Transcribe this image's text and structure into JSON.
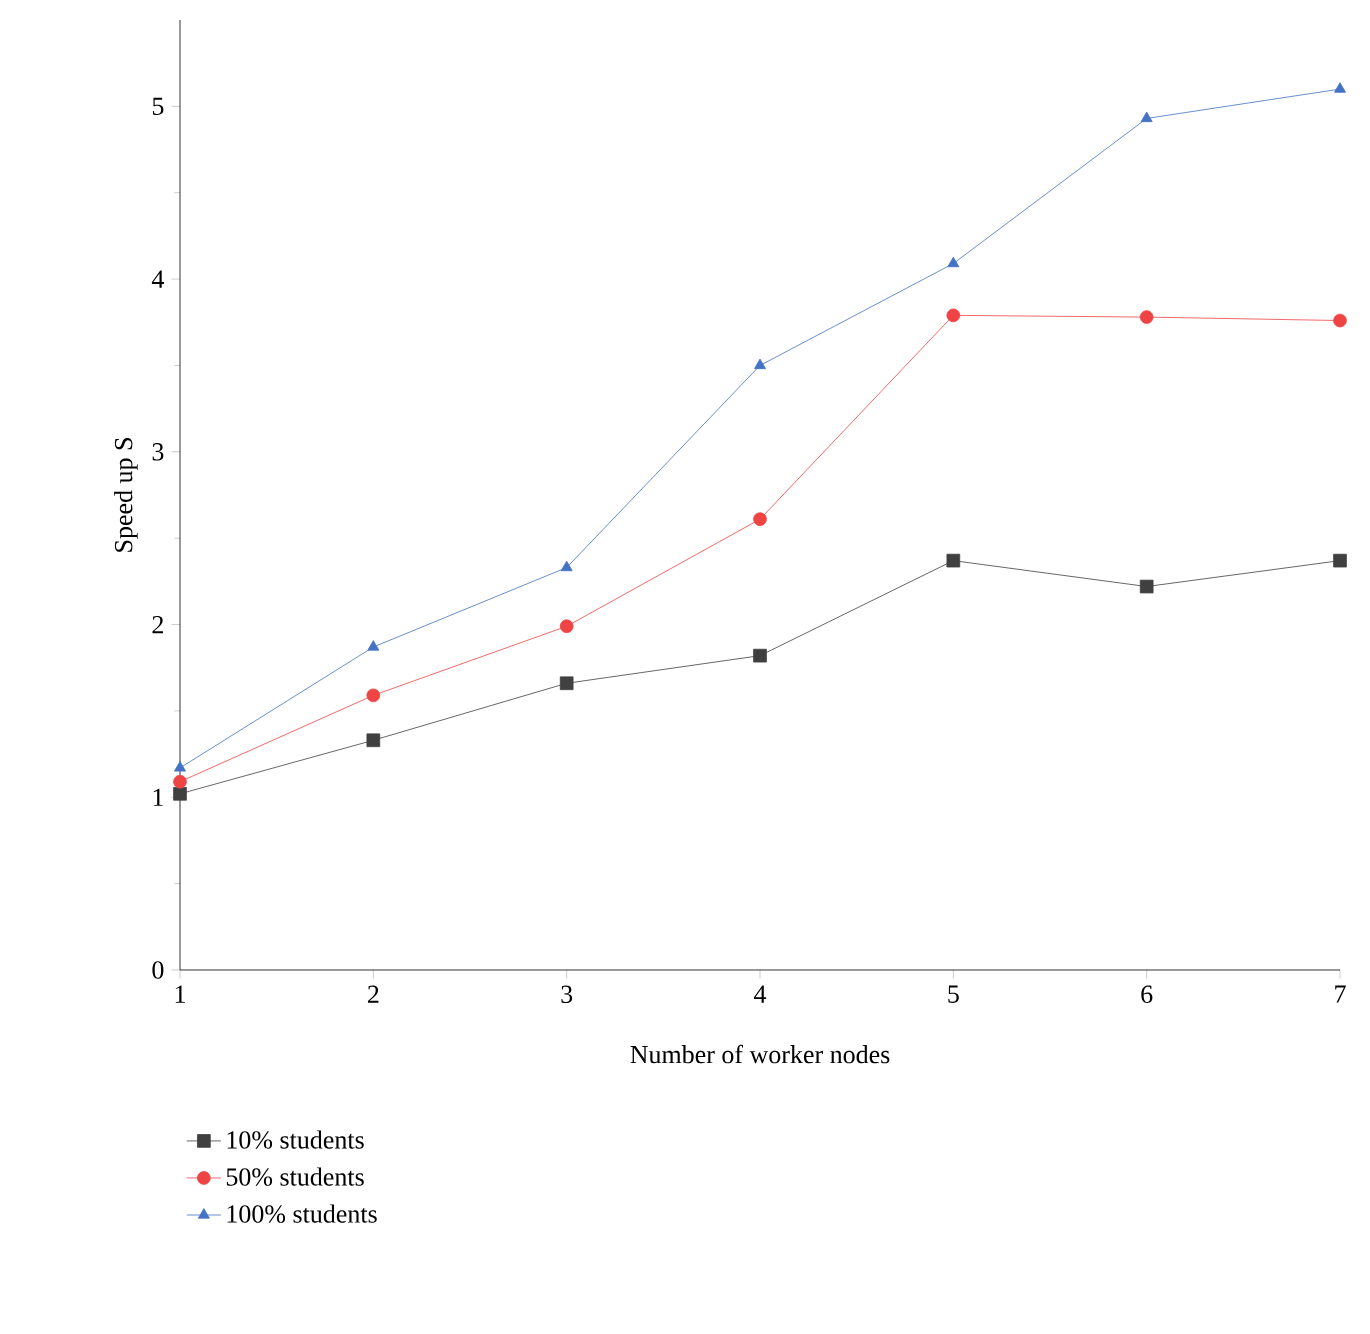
{
  "chart_data": {
    "type": "line",
    "xlabel": "Number of worker nodes",
    "ylabel": "Speed up S",
    "x": [
      1,
      2,
      3,
      4,
      5,
      6,
      7
    ],
    "series": [
      {
        "name": "10% students",
        "color": "#404040",
        "marker": "square",
        "values": [
          1.02,
          1.33,
          1.66,
          1.82,
          2.37,
          2.22,
          2.37
        ]
      },
      {
        "name": "50% students",
        "color": "#ef4444",
        "marker": "circle",
        "values": [
          1.09,
          1.59,
          1.99,
          2.61,
          3.79,
          3.78,
          3.76
        ]
      },
      {
        "name": "100% students",
        "color": "#4472c4",
        "marker": "triangle",
        "values": [
          1.17,
          1.87,
          2.33,
          3.5,
          4.09,
          4.93,
          5.1
        ]
      }
    ],
    "xlim": [
      1,
      7
    ],
    "ylim": [
      0,
      5.5
    ],
    "xticks": [
      1,
      2,
      3,
      4,
      5,
      6,
      7
    ],
    "yticks": [
      0,
      1,
      2,
      3,
      4,
      5
    ],
    "legend": "bottom left",
    "grid": false,
    "line_style": "solid"
  }
}
